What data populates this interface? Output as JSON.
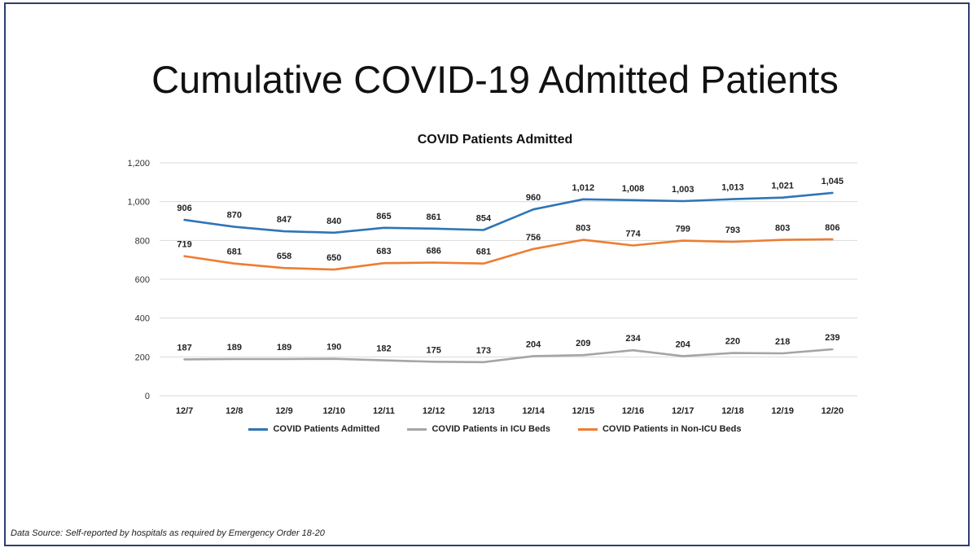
{
  "slide": {
    "title": "Cumulative COVID-19 Admitted Patients",
    "footer": "Data Source: Self-reported by hospitals as required by Emergency Order 18-20"
  },
  "chart_data": {
    "type": "line",
    "title": "COVID Patients Admitted",
    "categories": [
      "12/7",
      "12/8",
      "12/9",
      "12/10",
      "12/11",
      "12/12",
      "12/13",
      "12/14",
      "12/15",
      "12/16",
      "12/17",
      "12/18",
      "12/19",
      "12/20"
    ],
    "series": [
      {
        "name": "COVID Patients Admitted",
        "color": "#2e75b6",
        "values": [
          906,
          870,
          847,
          840,
          865,
          861,
          854,
          960,
          1012,
          1008,
          1003,
          1013,
          1021,
          1045
        ],
        "labels": [
          "906",
          "870",
          "847",
          "840",
          "865",
          "861",
          "854",
          "960",
          "1,012",
          "1,008",
          "1,003",
          "1,013",
          "1,021",
          "1,045"
        ]
      },
      {
        "name": "COVID Patients in ICU Beds",
        "color": "#a5a5a5",
        "values": [
          187,
          189,
          189,
          190,
          182,
          175,
          173,
          204,
          209,
          234,
          204,
          220,
          218,
          239
        ],
        "labels": [
          "187",
          "189",
          "189",
          "190",
          "182",
          "175",
          "173",
          "204",
          "209",
          "234",
          "204",
          "220",
          "218",
          "239"
        ]
      },
      {
        "name": "COVID Patients in Non-ICU Beds",
        "color": "#ed7d31",
        "values": [
          719,
          681,
          658,
          650,
          683,
          686,
          681,
          756,
          803,
          774,
          799,
          793,
          803,
          806
        ],
        "labels": [
          "719",
          "681",
          "658",
          "650",
          "683",
          "686",
          "681",
          "756",
          "803",
          "774",
          "799",
          "793",
          "803",
          "806"
        ]
      }
    ],
    "ylim": [
      0,
      1200
    ],
    "yticks": [
      0,
      200,
      400,
      600,
      800,
      1000,
      1200
    ],
    "ytick_labels": [
      "0",
      "200",
      "400",
      "600",
      "800",
      "1,000",
      "1,200"
    ],
    "grid": true,
    "legend": "bottom"
  }
}
